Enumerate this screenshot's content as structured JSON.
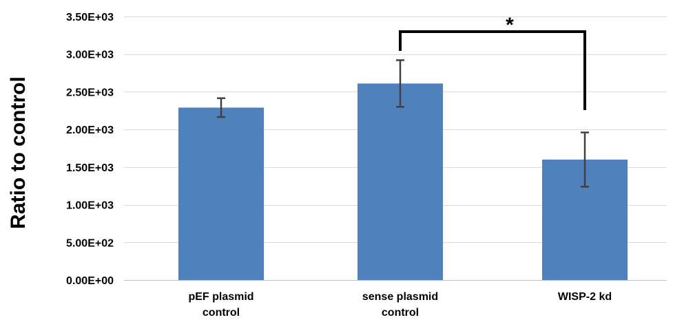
{
  "chart_data": {
    "type": "bar",
    "title": "",
    "xlabel": "",
    "ylabel": "Ratio to control",
    "ylim": [
      0,
      3500
    ],
    "yticks": [
      "0.00E+00",
      "5.00E+02",
      "1.00E+03",
      "1.50E+03",
      "2.00E+03",
      "2.50E+03",
      "3.00E+03",
      "3.50E+03"
    ],
    "ytick_values": [
      0,
      500,
      1000,
      1500,
      2000,
      2500,
      3000,
      3500
    ],
    "categories": [
      [
        "pEF plasmid",
        "control"
      ],
      [
        "sense plasmid",
        "control"
      ],
      [
        "WISP-2 kd"
      ]
    ],
    "values": [
      2290,
      2610,
      1600
    ],
    "errors": [
      125,
      310,
      360
    ],
    "grid": true,
    "bar_color": "#4f81bd",
    "error_color": "#404040",
    "significance": {
      "from_index": 1,
      "to_index": 2,
      "label": "*"
    }
  }
}
